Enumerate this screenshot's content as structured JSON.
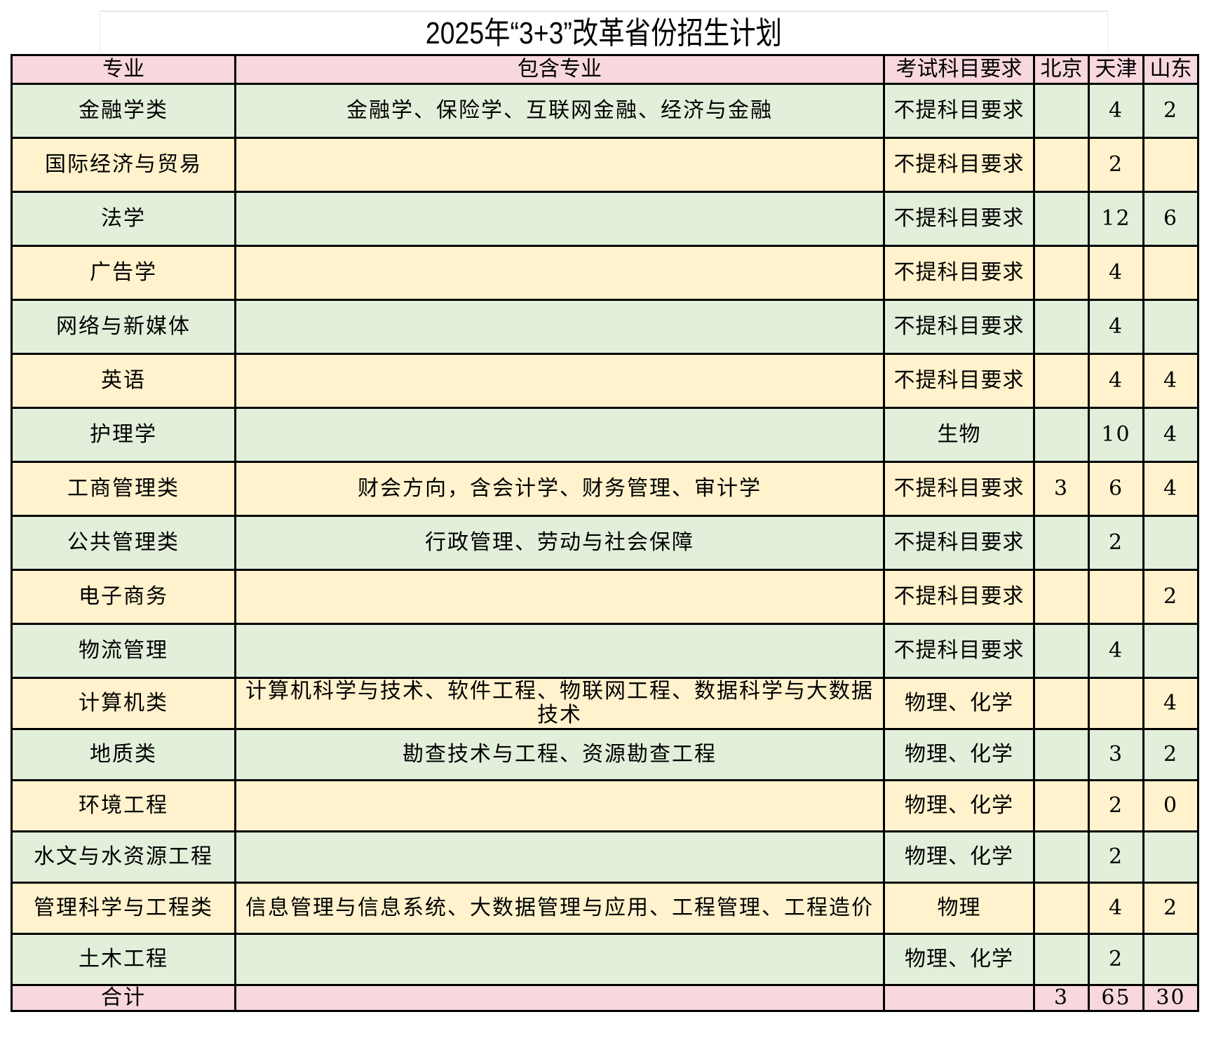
{
  "title": "2025年“3+3”改革省份招生计划",
  "headers": [
    "专业",
    "包含专业",
    "考试科目要求",
    "北京",
    "天津",
    "山东"
  ],
  "rows": [
    {
      "major": "金融学类",
      "includes": "金融学、保险学、互联网金融、经济与金融",
      "req": "不提科目要求",
      "bj": "",
      "tj": "4",
      "sd": "2"
    },
    {
      "major": "国际经济与贸易",
      "includes": "",
      "req": "不提科目要求",
      "bj": "",
      "tj": "2",
      "sd": ""
    },
    {
      "major": "法学",
      "includes": "",
      "req": "不提科目要求",
      "bj": "",
      "tj": "12",
      "sd": "6"
    },
    {
      "major": "广告学",
      "includes": "",
      "req": "不提科目要求",
      "bj": "",
      "tj": "4",
      "sd": ""
    },
    {
      "major": "网络与新媒体",
      "includes": "",
      "req": "不提科目要求",
      "bj": "",
      "tj": "4",
      "sd": ""
    },
    {
      "major": "英语",
      "includes": "",
      "req": "不提科目要求",
      "bj": "",
      "tj": "4",
      "sd": "4"
    },
    {
      "major": "护理学",
      "includes": "",
      "req": "生物",
      "bj": "",
      "tj": "10",
      "sd": "4"
    },
    {
      "major": "工商管理类",
      "includes": "财会方向，含会计学、财务管理、审计学",
      "req": "不提科目要求",
      "bj": "3",
      "tj": "6",
      "sd": "4"
    },
    {
      "major": "公共管理类",
      "includes": "行政管理、劳动与社会保障",
      "req": "不提科目要求",
      "bj": "",
      "tj": "2",
      "sd": ""
    },
    {
      "major": "电子商务",
      "includes": "",
      "req": "不提科目要求",
      "bj": "",
      "tj": "",
      "sd": "2"
    },
    {
      "major": "物流管理",
      "includes": "",
      "req": "不提科目要求",
      "bj": "",
      "tj": "4",
      "sd": ""
    },
    {
      "major": "计算机类",
      "includes": "计算机科学与技术、软件工程、物联网工程、数据科学与大数据技术",
      "req": "物理、化学",
      "bj": "",
      "tj": "",
      "sd": "4"
    },
    {
      "major": "地质类",
      "includes": "勘查技术与工程、资源勘查工程",
      "req": "物理、化学",
      "bj": "",
      "tj": "3",
      "sd": "2"
    },
    {
      "major": "环境工程",
      "includes": "",
      "req": "物理、化学",
      "bj": "",
      "tj": "2",
      "sd": "0"
    },
    {
      "major": "水文与水资源工程",
      "includes": "",
      "req": "物理、化学",
      "bj": "",
      "tj": "2",
      "sd": ""
    },
    {
      "major": "管理科学与工程类",
      "includes": "信息管理与信息系统、大数据管理与应用、工程管理、工程造价",
      "req": "物理",
      "bj": "",
      "tj": "4",
      "sd": "2"
    },
    {
      "major": "土木工程",
      "includes": "",
      "req": "物理、化学",
      "bj": "",
      "tj": "2",
      "sd": ""
    }
  ],
  "total": {
    "label": "合计",
    "includes": "",
    "req": "",
    "bj": "3",
    "tj": "65",
    "sd": "30"
  },
  "colors": {
    "header": "#f8d7de",
    "row_green": "#e2efda",
    "row_yellow": "#fff2cc"
  }
}
